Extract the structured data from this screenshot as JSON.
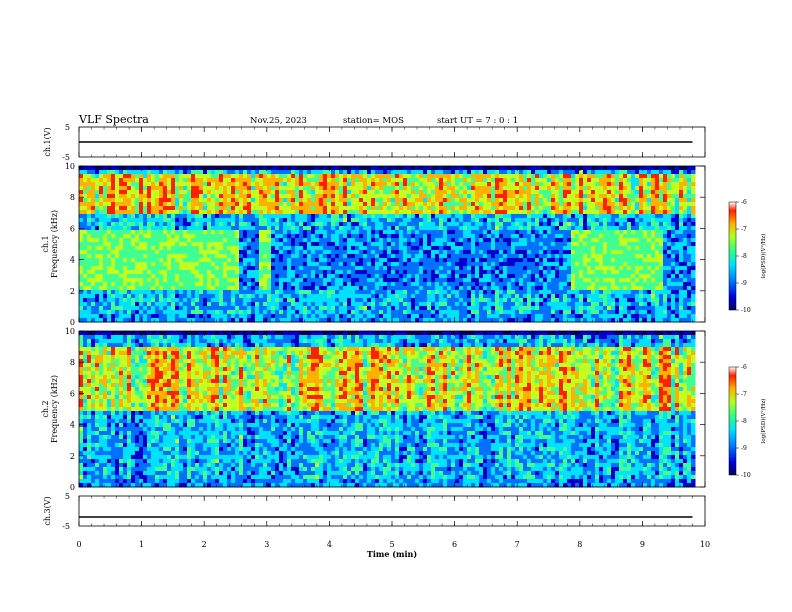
{
  "header": {
    "title": "VLF Spectra",
    "date": "Nov.25, 2023",
    "station": "station= MOS",
    "start": "start  UT  =   7 : 0  : 1"
  },
  "colors": {
    "colormap": [
      "#000060",
      "#0000cc",
      "#0070ff",
      "#00e0ff",
      "#40ff90",
      "#c0ff20",
      "#ffb000",
      "#ff2000",
      "#ffffff"
    ],
    "axis": "#000000",
    "background": "#ffffff"
  },
  "chart_data": [
    {
      "type": "line",
      "panel": "ch1-voltage",
      "ylabel": "ch.1(V)",
      "ylim": [
        -5,
        5
      ],
      "yticks": [
        "5",
        "-5"
      ],
      "x": [
        0,
        9.8
      ],
      "y": [
        0,
        0
      ]
    },
    {
      "type": "heatmap",
      "panel": "ch1-spectrogram",
      "ylabel": "ch.1\nFrequency (kHz)",
      "ylim": [
        0,
        10
      ],
      "yticks": [
        "0",
        "2",
        "4",
        "6",
        "8",
        "10"
      ],
      "xlim": [
        0,
        10
      ],
      "x_extent_min": 9.8,
      "quiet_band_khz": [
        2,
        6
      ],
      "active_band_khz": [
        7,
        9.5
      ],
      "noise_intervals_min": [
        [
          0,
          2.55
        ],
        [
          2.9,
          3.05
        ],
        [
          7.85,
          9.35
        ]
      ],
      "colorbar": {
        "label": "log(PSD)(V²/Hz)",
        "range": [
          -10,
          -6
        ],
        "ticks": [
          "-6",
          "-7",
          "-8",
          "-9",
          "-10"
        ]
      }
    },
    {
      "type": "heatmap",
      "panel": "ch2-spectrogram",
      "ylabel": "ch.2\nFrequency (kHz)",
      "ylim": [
        0,
        10
      ],
      "yticks": [
        "0",
        "2",
        "4",
        "6",
        "8",
        "10"
      ],
      "xlim": [
        0,
        10
      ],
      "x_extent_min": 9.8,
      "active_band_khz": [
        5,
        9
      ],
      "colorbar": {
        "label": "log(PSD)(V²/Hz)",
        "range": [
          -10,
          -6
        ],
        "ticks": [
          "-6",
          "-7",
          "-8",
          "-9",
          "-10"
        ]
      }
    },
    {
      "type": "line",
      "panel": "ch3-voltage",
      "ylabel": "ch.3(V)",
      "ylim": [
        -5,
        5
      ],
      "yticks": [
        "5",
        "-5"
      ],
      "x": [
        0,
        9.8
      ],
      "y": [
        -2,
        -2
      ]
    },
    {
      "type": "axis",
      "xlabel": "Time (min)",
      "xlim": [
        0,
        10
      ],
      "xticks": [
        "0",
        "1",
        "2",
        "3",
        "4",
        "5",
        "6",
        "7",
        "8",
        "9",
        "10"
      ]
    }
  ]
}
